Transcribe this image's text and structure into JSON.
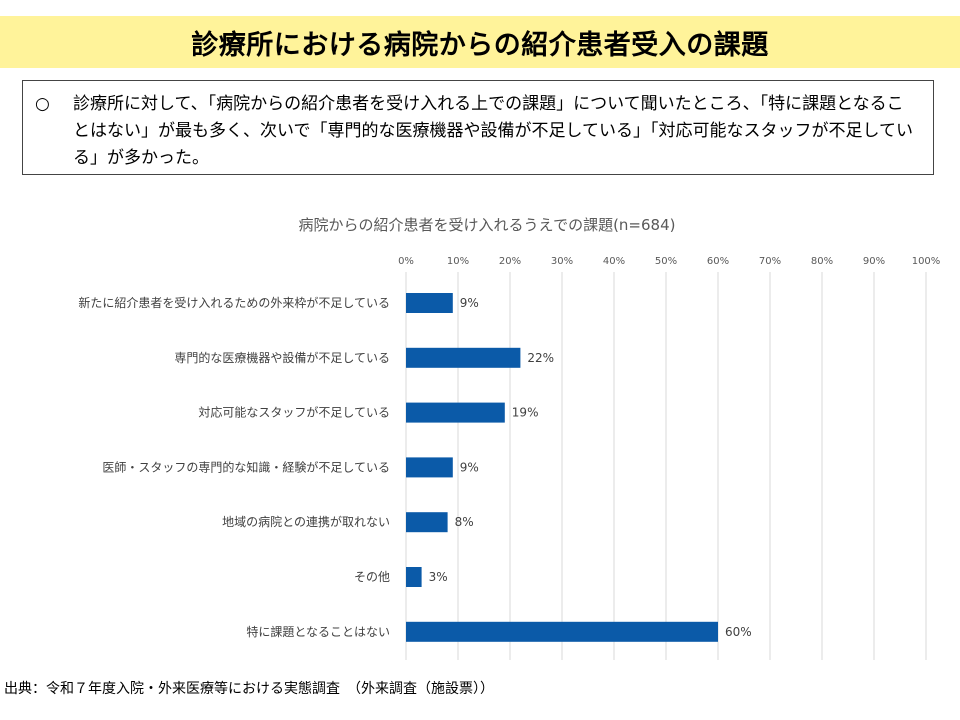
{
  "header": {
    "title": "診療所における病院からの紹介患者受入の課題"
  },
  "summary": {
    "bullet": "○",
    "text": "診療所に対して、「病院からの紹介患者を受け入れる上での課題」について聞いたところ、「特に課題となることはない」が最も多く、次いで「専門的な医療機器や設備が不足している」「対応可能なスタッフが不足している」が多かった。"
  },
  "chart_data": {
    "type": "bar",
    "orientation": "horizontal",
    "title": "病院からの紹介患者を受け入れるうえでの課題(n=684)",
    "categories": [
      "新たに紹介患者を受け入れるための外来枠が不足している",
      "専門的な医療機器や設備が不足している",
      "対応可能なスタッフが不足している",
      "医師・スタッフの専門的な知識・経験が不足している",
      "地域の病院との連携が取れない",
      "その他",
      "特に課題となることはない"
    ],
    "values": [
      9,
      22,
      19,
      9,
      8,
      3,
      60
    ],
    "value_labels": [
      "9%",
      "22%",
      "19%",
      "9%",
      "8%",
      "3%",
      "60%"
    ],
    "xlim": [
      0,
      100
    ],
    "xticks": [
      "0%",
      "10%",
      "20%",
      "30%",
      "40%",
      "50%",
      "60%",
      "70%",
      "80%",
      "90%",
      "100%"
    ],
    "grid": true,
    "legend": "none",
    "bar_color": "#0b5aa8"
  },
  "footer": {
    "source": "出典：令和７年度入院・外来医療等における実態調査　（外来調査（施設票））"
  }
}
